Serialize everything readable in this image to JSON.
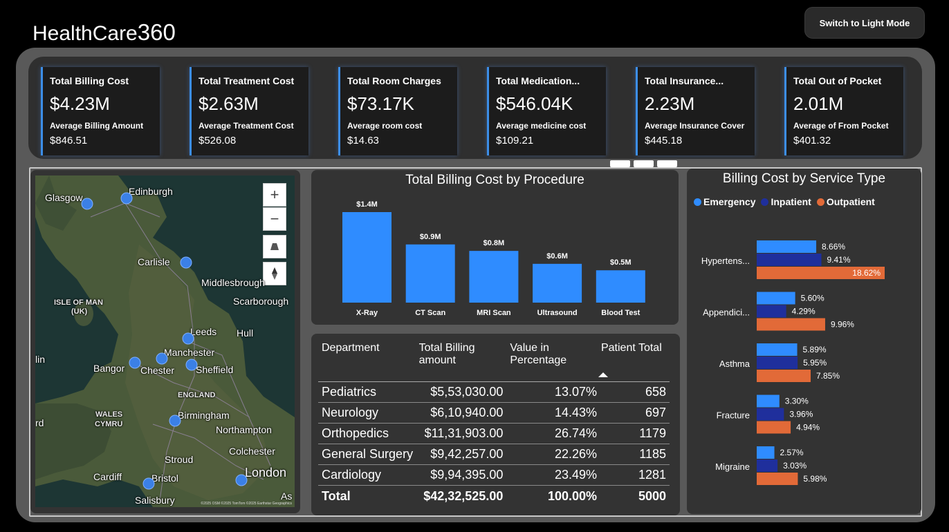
{
  "app": {
    "title_main": "HealthCare",
    "title_num": "360",
    "theme_button": "Switch to Light Mode"
  },
  "kpis": [
    {
      "label": "Total Billing Cost",
      "value": "$4.23M",
      "sub_label": "Average Billing Amount",
      "sub_value": "$846.51"
    },
    {
      "label": "Total Treatment Cost",
      "value": "$2.63M",
      "sub_label": "Average Treatment Cost",
      "sub_value": "$526.08"
    },
    {
      "label": "Total Room Charges",
      "value": "$73.17K",
      "sub_label": "Average room cost",
      "sub_value": "$14.63"
    },
    {
      "label": "Total Medication...",
      "value": "$546.04K",
      "sub_label": "Average medicine cost",
      "sub_value": "$109.21"
    },
    {
      "label": "Total Insurance...",
      "value": "2.23M",
      "sub_label": "Average Insurance Cover",
      "sub_value": "$445.18"
    },
    {
      "label": "Total Out of Pocket",
      "value": "2.01M",
      "sub_label": "Average of From Pocket",
      "sub_value": "$401.32"
    }
  ],
  "map": {
    "zoom_in": "+",
    "zoom_out": "−",
    "credit": "©2025 OSM ©2025 TomTom ©2025 Earthstar Geographics",
    "places": [
      "Glasgow",
      "Edinburgh",
      "Carlisle",
      "Middlesbrough",
      "Scarborough",
      "ISLE OF MAN",
      "(UK)",
      "Leeds",
      "Hull",
      "Manchester",
      "lin",
      "Bangor",
      "Chester",
      "Sheffield",
      "ENGLAND",
      "WALES",
      "CYMRU",
      "Birmingham",
      "rd",
      "Northampton",
      "Colchester",
      "Stroud",
      "Cardiff",
      "Bristol",
      "London",
      "Salisbury",
      "As"
    ]
  },
  "procedure_chart": {
    "title": "Total Billing Cost by Procedure"
  },
  "chart_data": [
    {
      "type": "bar",
      "title": "Total Billing Cost by Procedure",
      "categories": [
        "X-Ray",
        "CT Scan",
        "MRI Scan",
        "Ultrasound",
        "Blood Test"
      ],
      "values": [
        1.4,
        0.9,
        0.8,
        0.6,
        0.5
      ],
      "data_labels": [
        "$1.4M",
        "$0.9M",
        "$0.8M",
        "$0.6M",
        "$0.5M"
      ],
      "ylim": [
        0,
        1.4
      ],
      "color": "#2f8cff"
    },
    {
      "type": "bar",
      "orientation": "horizontal",
      "title": "Billing Cost by Service Type",
      "categories": [
        "Hypertens...",
        "Appendici...",
        "Asthma",
        "Fracture",
        "Migraine"
      ],
      "series": [
        {
          "name": "Emergency",
          "color": "#2f8cff",
          "values": [
            8.66,
            5.6,
            5.89,
            3.3,
            2.57
          ]
        },
        {
          "name": "Inpatient",
          "color": "#1f2f9c",
          "values": [
            9.41,
            4.29,
            5.95,
            3.96,
            3.03
          ]
        },
        {
          "name": "Outpatient",
          "color": "#e26a38",
          "values": [
            18.62,
            9.96,
            7.85,
            4.94,
            5.98
          ]
        }
      ],
      "data_labels": [
        [
          "8.66%",
          "9.41%",
          "18.62%"
        ],
        [
          "5.60%",
          "4.29%",
          "9.96%"
        ],
        [
          "5.89%",
          "5.95%",
          "7.85%"
        ],
        [
          "3.30%",
          "3.96%",
          "4.94%"
        ],
        [
          "2.57%",
          "3.03%",
          "5.98%"
        ]
      ],
      "legend_position": "top-left"
    }
  ],
  "table": {
    "headers": {
      "department": "Department",
      "billing_line1": "Total Billing",
      "billing_line2": "amount",
      "pct_line1": "Value in",
      "pct_line2": "Percentage",
      "patients": "Patient Total"
    },
    "rows": [
      {
        "department": "Pediatrics",
        "billing": "$5,53,030.00",
        "pct": "13.07%",
        "patients": "658"
      },
      {
        "department": "Neurology",
        "billing": "$6,10,940.00",
        "pct": "14.43%",
        "patients": "697"
      },
      {
        "department": "Orthopedics",
        "billing": "$11,31,903.00",
        "pct": "26.74%",
        "patients": "1179"
      },
      {
        "department": "General Surgery",
        "billing": "$9,42,257.00",
        "pct": "22.26%",
        "patients": "1185"
      },
      {
        "department": "Cardiology",
        "billing": "$9,94,395.00",
        "pct": "23.49%",
        "patients": "1281"
      }
    ],
    "total": {
      "department": "Total",
      "billing": "$42,32,525.00",
      "pct": "100.00%",
      "patients": "5000"
    }
  },
  "service_chart": {
    "title": "Billing Cost by Service Type",
    "legend": [
      "Emergency",
      "Inpatient",
      "Outpatient"
    ]
  }
}
